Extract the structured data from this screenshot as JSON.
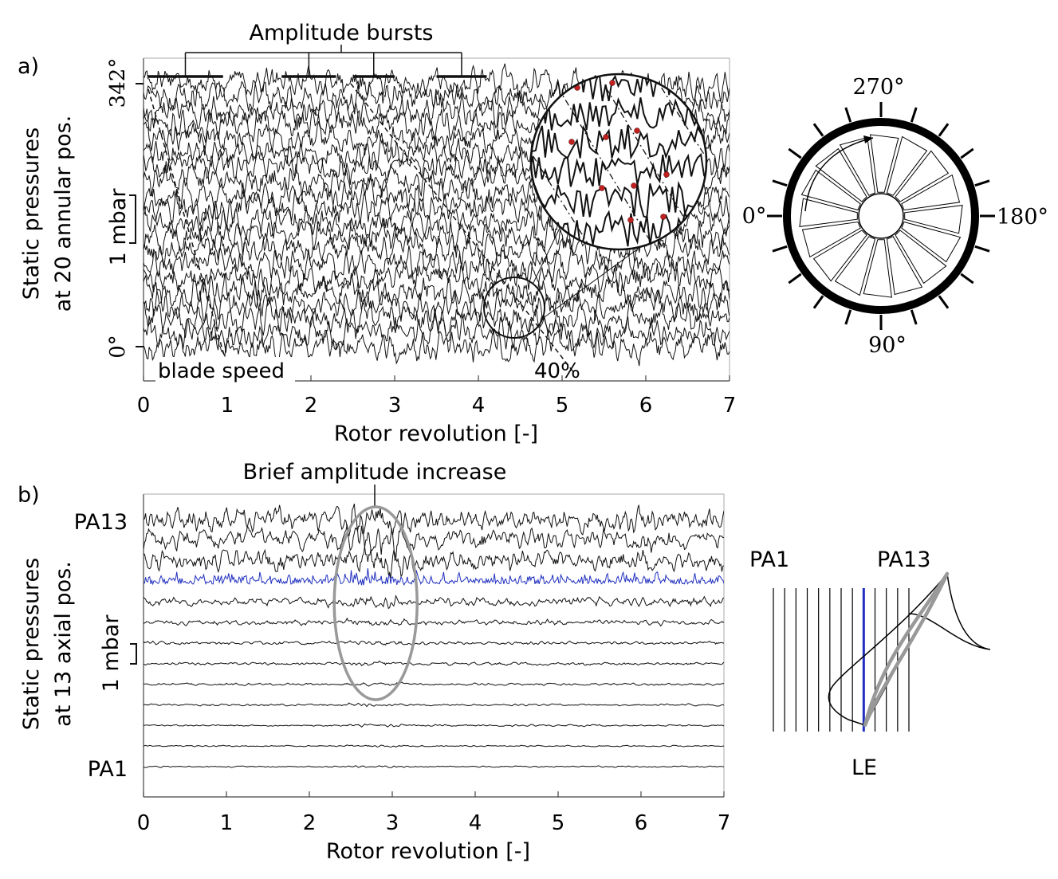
{
  "chart_data": [
    {
      "type": "line",
      "panel_label": "a)",
      "xlabel": "Rotor revolution [-]",
      "ylabel_lines": [
        "Static pressures",
        "at 20 annular pos."
      ],
      "xlim": [
        0,
        7
      ],
      "xticks": [
        "0",
        "1",
        "2",
        "3",
        "4",
        "5",
        "6",
        "7"
      ],
      "yticks": [
        "0°",
        "342°"
      ],
      "scale_bar": "1 mbar",
      "trace_count": 20,
      "trace_amplitude_mbar": 0.5,
      "annotations": {
        "bursts_title": "Amplitude bursts",
        "blade_speed": "blade speed",
        "percent": "40%"
      },
      "burst_intervals": [
        [
          0.05,
          0.95
        ],
        [
          1.65,
          2.3
        ],
        [
          2.5,
          3.0
        ],
        [
          3.5,
          4.1
        ]
      ],
      "trace_color": "#111111"
    },
    {
      "type": "line",
      "panel_label": "b)",
      "xlabel": "Rotor revolution [-]",
      "ylabel_lines": [
        "Static pressures",
        "at 13 axial pos."
      ],
      "xlim": [
        0,
        7
      ],
      "xticks": [
        "0",
        "1",
        "2",
        "3",
        "4",
        "5",
        "6",
        "7"
      ],
      "trace_labels": {
        "top": "PA13",
        "bottom": "PA1"
      },
      "scale_bar": "1 mbar",
      "trace_count": 13,
      "trace_amplitudes_mbar": [
        0.05,
        0.05,
        0.06,
        0.07,
        0.08,
        0.1,
        0.12,
        0.18,
        0.3,
        0.55,
        0.7,
        0.75,
        0.8
      ],
      "highlight_trace": 9,
      "highlight_color": "#1f2fbf",
      "annotations": {
        "brief_increase": "Brief amplitude increase"
      },
      "ellipse_center_x": 2.8
    }
  ],
  "diagrams": {
    "annular": {
      "labels": {
        "top": "270°",
        "left": "0°",
        "right": "180°",
        "bottom": "90°"
      },
      "blade_count": 16,
      "sensor_count": 20
    },
    "axial": {
      "labels": {
        "left": "PA1",
        "right": "PA13",
        "bottom": "LE"
      },
      "line_count": 13,
      "le_color": "#1f2fbf",
      "blade_color": "#999999"
    }
  }
}
